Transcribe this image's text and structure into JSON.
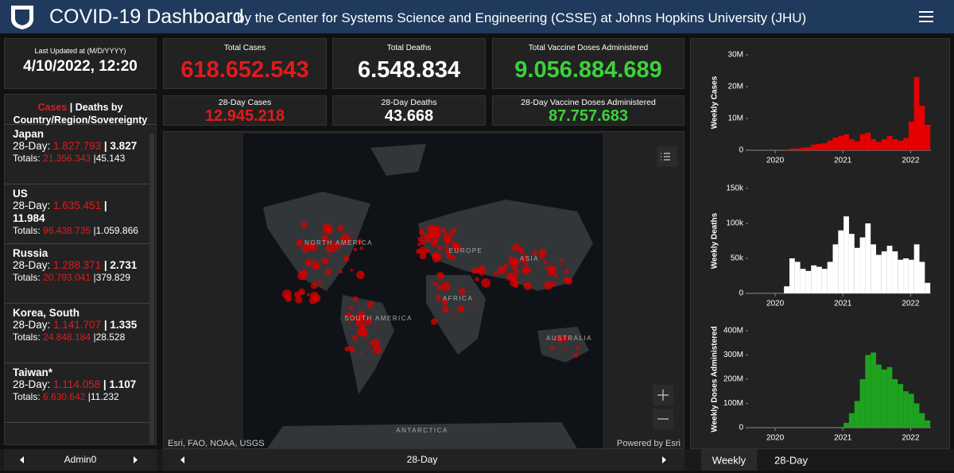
{
  "header": {
    "title": "COVID-19 Dashboard",
    "subtitle": "by the Center for Systems Science and Engineering (CSSE) at Johns Hopkins University (JHU)"
  },
  "last_updated": {
    "label": "Last Updated at (M/D/YYYY)",
    "value": "4/10/2022, 12:20"
  },
  "stats": [
    {
      "label": "Total Cases",
      "value": "618.652.543"
    },
    {
      "label": "Total Deaths",
      "value": "6.548.834"
    },
    {
      "label": "Total Vaccine Doses Administered",
      "value": "9.056.884.689"
    },
    {
      "label": "28-Day Cases",
      "value": "12.945.218"
    },
    {
      "label": "28-Day Deaths",
      "value": "43.668"
    },
    {
      "label": "28-Day Vaccine Doses Administered",
      "value": "87.757.683"
    }
  ],
  "list": {
    "title_highlight": "Cases",
    "title_rest": "| Deaths by Country/Region/Sovereignty",
    "day_label": "28-Day:",
    "totals_label": "Totals:",
    "separator": "|",
    "rows": [
      {
        "name": "Japan",
        "day_cases": "1.827.793",
        "day_deaths": "3.827",
        "total_cases": "21.356.343",
        "total_deaths": "45.143"
      },
      {
        "name": "US",
        "day_cases": "1.635.451",
        "day_deaths": "11.984",
        "total_cases": "96.438.735",
        "total_deaths": "1.059.866"
      },
      {
        "name": "Russia",
        "day_cases": "1.288.371",
        "day_deaths": "2.731",
        "total_cases": "20.793.041",
        "total_deaths": "379.829"
      },
      {
        "name": "Korea, South",
        "day_cases": "1.141.707",
        "day_deaths": "1.335",
        "total_cases": "24.848.184",
        "total_deaths": "28.528"
      },
      {
        "name": "Taiwan*",
        "day_cases": "1.114.058",
        "day_deaths": "1.107",
        "total_cases": "6.630.642",
        "total_deaths": "11.232"
      }
    ]
  },
  "map": {
    "labels": [
      "NORTH AMERICA",
      "EUROPE",
      "ASIA",
      "AFRICA",
      "SOUTH AMERICA",
      "AUSTRALIA",
      "ANTARCTICA"
    ],
    "attribution": "Esri, FAO, NOAA, USGS",
    "powered": "Powered by Esri"
  },
  "footer": {
    "left": "Admin0",
    "center": "28-Day",
    "tabs": [
      "Weekly",
      "28-Day"
    ]
  },
  "charts": [
    {
      "type": "bar",
      "ylabel": "Weekly Cases",
      "color": "#e60000",
      "x": [
        2020.05,
        2020.13,
        2020.21,
        2020.29,
        2020.37,
        2020.45,
        2020.53,
        2020.61,
        2020.69,
        2020.77,
        2020.85,
        2020.93,
        2021.01,
        2021.09,
        2021.17,
        2021.25,
        2021.33,
        2021.41,
        2021.49,
        2021.57,
        2021.65,
        2021.73,
        2021.81,
        2021.89,
        2021.97,
        2022.05,
        2022.13,
        2022.21
      ],
      "values": [
        0,
        300000,
        500000,
        600000,
        800000,
        1000000,
        1800000,
        2000000,
        2200000,
        3000000,
        4000000,
        4500000,
        5000000,
        3500000,
        2800000,
        5000000,
        5500000,
        3500000,
        2600000,
        3500000,
        4500000,
        3500000,
        3000000,
        3800000,
        9000000,
        23000000,
        14000000,
        8000000
      ],
      "xlim": [
        2019.6,
        2022.3
      ],
      "xticks": [
        2020,
        2021,
        2022
      ],
      "ylim": [
        0,
        30000000
      ],
      "yticks": [
        0,
        {
          "value": 10000000,
          "label": "10M"
        },
        {
          "value": 20000000,
          "label": "20M"
        },
        {
          "value": 30000000,
          "label": "30M"
        }
      ]
    },
    {
      "type": "bar",
      "ylabel": "Weekly Deaths",
      "color": "#ffffff",
      "x": [
        2020.05,
        2020.13,
        2020.21,
        2020.29,
        2020.37,
        2020.45,
        2020.53,
        2020.61,
        2020.69,
        2020.77,
        2020.85,
        2020.93,
        2021.01,
        2021.09,
        2021.17,
        2021.25,
        2021.33,
        2021.41,
        2021.49,
        2021.57,
        2021.65,
        2021.73,
        2021.81,
        2021.89,
        2021.97,
        2022.05,
        2022.13,
        2022.21
      ],
      "values": [
        0,
        10000,
        50000,
        45000,
        35000,
        32000,
        40000,
        38000,
        35000,
        45000,
        70000,
        90000,
        110000,
        85000,
        65000,
        80000,
        100000,
        70000,
        55000,
        60000,
        68000,
        60000,
        48000,
        50000,
        48000,
        70000,
        45000,
        15000
      ],
      "xlim": [
        2019.6,
        2022.3
      ],
      "xticks": [
        2020,
        2021,
        2022
      ],
      "ylim": [
        0,
        150000
      ],
      "yticks": [
        0,
        {
          "value": 50000,
          "label": "50k"
        },
        {
          "value": 100000,
          "label": "100k"
        },
        {
          "value": 150000,
          "label": "150k"
        }
      ]
    },
    {
      "type": "bar",
      "ylabel": "Weekly Doses Administered",
      "color": "#1fa31f",
      "x": [
        2020.05,
        2020.13,
        2020.21,
        2020.29,
        2020.37,
        2020.45,
        2020.53,
        2020.61,
        2020.69,
        2020.77,
        2020.85,
        2020.93,
        2021.01,
        2021.09,
        2021.17,
        2021.25,
        2021.33,
        2021.41,
        2021.49,
        2021.57,
        2021.65,
        2021.73,
        2021.81,
        2021.89,
        2021.97,
        2022.05,
        2022.13,
        2022.21
      ],
      "values": [
        0,
        0,
        0,
        0,
        0,
        0,
        0,
        0,
        0,
        0,
        0,
        3000000,
        20000000,
        60000000,
        110000000,
        200000000,
        300000000,
        310000000,
        260000000,
        240000000,
        250000000,
        200000000,
        180000000,
        150000000,
        140000000,
        100000000,
        60000000,
        30000000
      ],
      "xlim": [
        2019.6,
        2022.3
      ],
      "xticks": [
        2020,
        2021,
        2022
      ],
      "ylim": [
        0,
        400000000
      ],
      "yticks": [
        0,
        {
          "value": 100000000,
          "label": "100M"
        },
        {
          "value": 200000000,
          "label": "200M"
        },
        {
          "value": 300000000,
          "label": "300M"
        },
        {
          "value": 400000000,
          "label": "400M"
        }
      ]
    }
  ]
}
